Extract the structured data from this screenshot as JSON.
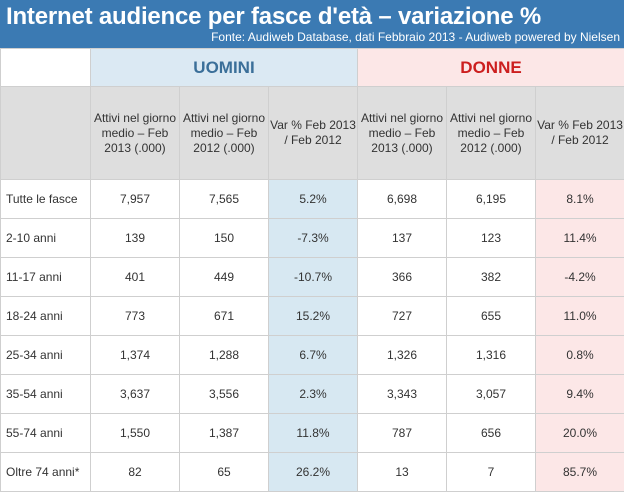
{
  "title": "Internet audience per fasce d'età – variazione %",
  "subtitle": "Fonte: Audiweb Database, dati Febbraio 2013 - Audiweb powered by Nielsen",
  "groups": {
    "men": "UOMINI",
    "women": "DONNE"
  },
  "headers": {
    "men_feb2013": "Attivi nel giorno medio – Feb 2013 (.000)",
    "men_feb2012": "Attivi nel giorno medio – Feb 2012 (.000)",
    "men_var": "Var % Feb 2013 / Feb 2012",
    "women_feb2013": "Attivi nel giorno medio – Feb 2013 (.000)",
    "women_feb2012": "Attivi nel giorno medio – Feb 2012 (.000)",
    "women_var": "Var % Feb 2013 / Feb 2012"
  },
  "colors": {
    "banner": "#3b7ab3",
    "men_group_bg": "#dbe9f3",
    "men_group_text": "#3b6f99",
    "women_group_bg": "#fce7e7",
    "women_group_text": "#cc1f1f",
    "header_bg": "#dedede",
    "men_var_bg": "#d7e8f2",
    "women_var_bg": "#fce7e7"
  },
  "chart_data": {
    "type": "table",
    "columns": [
      "",
      "UOMINI Feb 2013",
      "UOMINI Feb 2012",
      "UOMINI Var %",
      "DONNE Feb 2013",
      "DONNE Feb 2012",
      "DONNE Var %"
    ],
    "rows": [
      {
        "label": "Tutte le fasce",
        "m2013": "7,957",
        "m2012": "7,565",
        "mvar": "5.2%",
        "w2013": "6,698",
        "w2012": "6,195",
        "wvar": "8.1%"
      },
      {
        "label": "2-10 anni",
        "m2013": "139",
        "m2012": "150",
        "mvar": "-7.3%",
        "w2013": "137",
        "w2012": "123",
        "wvar": "11.4%"
      },
      {
        "label": "11-17 anni",
        "m2013": "401",
        "m2012": "449",
        "mvar": "-10.7%",
        "w2013": "366",
        "w2012": "382",
        "wvar": "-4.2%"
      },
      {
        "label": "18-24 anni",
        "m2013": "773",
        "m2012": "671",
        "mvar": "15.2%",
        "w2013": "727",
        "w2012": "655",
        "wvar": "11.0%"
      },
      {
        "label": "25-34 anni",
        "m2013": "1,374",
        "m2012": "1,288",
        "mvar": "6.7%",
        "w2013": "1,326",
        "w2012": "1,316",
        "wvar": "0.8%"
      },
      {
        "label": "35-54 anni",
        "m2013": "3,637",
        "m2012": "3,556",
        "mvar": "2.3%",
        "w2013": "3,343",
        "w2012": "3,057",
        "wvar": "9.4%"
      },
      {
        "label": "55-74 anni",
        "m2013": "1,550",
        "m2012": "1,387",
        "mvar": "11.8%",
        "w2013": "787",
        "w2012": "656",
        "wvar": "20.0%"
      },
      {
        "label": "Oltre 74 anni*",
        "m2013": "82",
        "m2012": "65",
        "mvar": "26.2%",
        "w2013": "13",
        "w2012": "7",
        "wvar": "85.7%"
      }
    ]
  }
}
